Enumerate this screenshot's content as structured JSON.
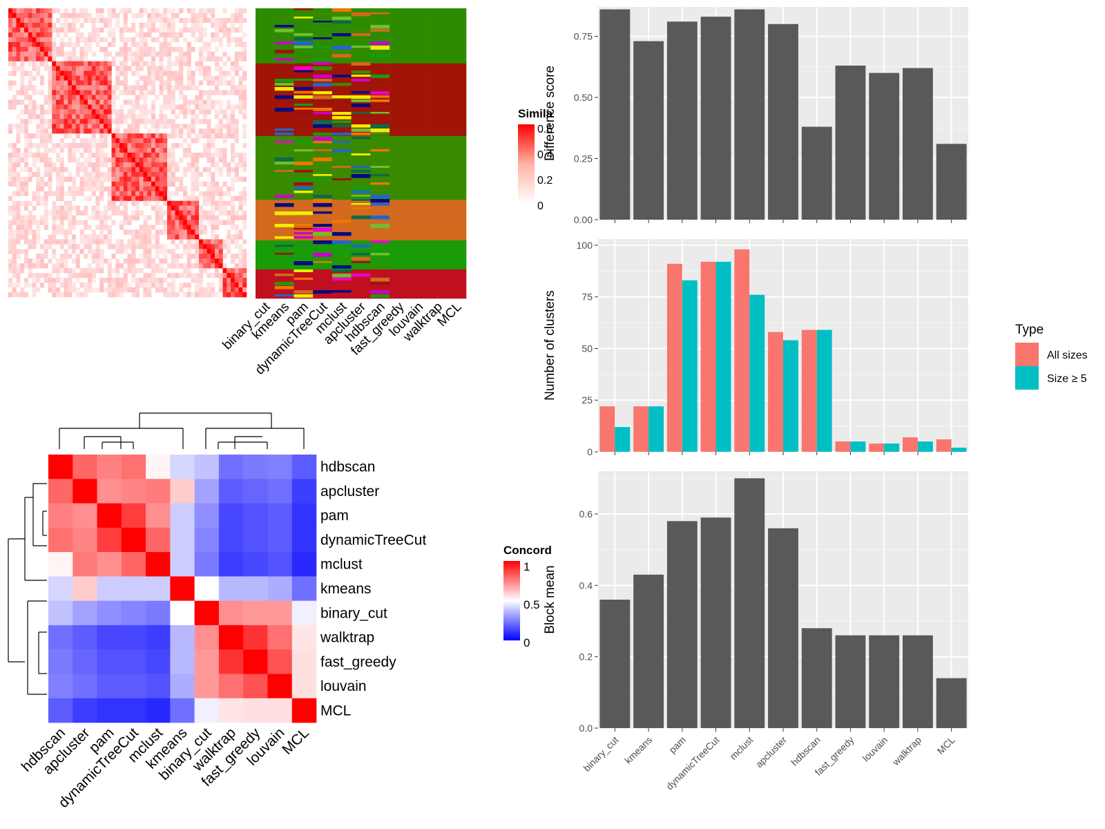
{
  "colors": {
    "panel_bg": "#ebebeb",
    "grid": "#ffffff",
    "bar_dark": "#595959",
    "all_sizes": "#f8766d",
    "size_ge5": "#00bfc4",
    "sim_high": "#ff0000",
    "conc_high": "#ff0000",
    "conc_mid": "#ffffff",
    "conc_low": "#0000ff"
  },
  "similarity_heatmap": {
    "legend_title": "Simila",
    "legend_ticks": [
      "0.6",
      "0.4",
      "0.2",
      "0"
    ]
  },
  "membership_heatmap": {
    "methods": [
      "binary_cut",
      "kmeans",
      "pam",
      "dynamicTreeCut",
      "mclust",
      "apcluster",
      "hdbscan",
      "fast_greedy",
      "louvain",
      "walktrap",
      "MCL"
    ]
  },
  "concordance_heatmap": {
    "legend_title": "Concord",
    "legend_ticks": [
      "1",
      "0.5",
      "0"
    ],
    "methods": [
      "hdbscan",
      "apcluster",
      "pam",
      "dynamicTreeCut",
      "mclust",
      "kmeans",
      "binary_cut",
      "walktrap",
      "fast_greedy",
      "louvain",
      "MCL"
    ],
    "matrix": [
      [
        1.0,
        0.8,
        0.75,
        0.78,
        0.52,
        0.42,
        0.38,
        0.22,
        0.24,
        0.25,
        0.18
      ],
      [
        0.8,
        1.0,
        0.72,
        0.74,
        0.76,
        0.6,
        0.32,
        0.18,
        0.2,
        0.22,
        0.12
      ],
      [
        0.75,
        0.72,
        1.0,
        0.88,
        0.72,
        0.4,
        0.28,
        0.14,
        0.16,
        0.18,
        0.1
      ],
      [
        0.78,
        0.74,
        0.88,
        1.0,
        0.8,
        0.4,
        0.26,
        0.14,
        0.16,
        0.18,
        0.1
      ],
      [
        0.52,
        0.76,
        0.72,
        0.8,
        1.0,
        0.4,
        0.24,
        0.12,
        0.14,
        0.16,
        0.08
      ],
      [
        0.42,
        0.6,
        0.4,
        0.4,
        0.4,
        1.0,
        0.5,
        0.36,
        0.36,
        0.34,
        0.22
      ],
      [
        0.38,
        0.32,
        0.28,
        0.26,
        0.24,
        0.5,
        1.0,
        0.72,
        0.7,
        0.7,
        0.47
      ],
      [
        0.22,
        0.18,
        0.14,
        0.14,
        0.12,
        0.36,
        0.72,
        1.0,
        0.9,
        0.78,
        0.55
      ],
      [
        0.24,
        0.2,
        0.16,
        0.16,
        0.14,
        0.36,
        0.7,
        0.9,
        1.0,
        0.84,
        0.56
      ],
      [
        0.25,
        0.22,
        0.18,
        0.18,
        0.16,
        0.34,
        0.7,
        0.78,
        0.84,
        1.0,
        0.56
      ],
      [
        0.18,
        0.12,
        0.1,
        0.1,
        0.08,
        0.22,
        0.47,
        0.55,
        0.56,
        0.56,
        1.0
      ]
    ]
  },
  "chart_data": [
    {
      "type": "bar",
      "categories": [
        "binary_cut",
        "kmeans",
        "pam",
        "dynamicTreeCut",
        "mclust",
        "apcluster",
        "hdbscan",
        "fast_greedy",
        "louvain",
        "walktrap",
        "MCL"
      ],
      "values": [
        0.86,
        0.73,
        0.81,
        0.83,
        0.86,
        0.8,
        0.38,
        0.63,
        0.6,
        0.62,
        0.31
      ],
      "ylabel": "Difference score",
      "ylim": [
        0,
        0.87
      ],
      "yticks": [
        "0.00",
        "0.25",
        "0.50",
        "0.75"
      ],
      "grid": true
    },
    {
      "type": "bar",
      "categories": [
        "binary_cut",
        "kmeans",
        "pam",
        "dynamicTreeCut",
        "mclust",
        "apcluster",
        "hdbscan",
        "fast_greedy",
        "louvain",
        "walktrap",
        "MCL"
      ],
      "series": [
        {
          "name": "All sizes",
          "values": [
            22,
            22,
            91,
            92,
            98,
            58,
            59,
            5,
            4,
            7,
            6
          ]
        },
        {
          "name": "Size ≥ 5",
          "values": [
            12,
            22,
            83,
            92,
            76,
            54,
            59,
            5,
            4,
            5,
            2
          ]
        }
      ],
      "ylabel": "Number of clusters",
      "ylim": [
        0,
        103
      ],
      "yticks": [
        "0",
        "25",
        "50",
        "75",
        "100"
      ],
      "legend_title": "Type",
      "legend_position": "right",
      "grid": true
    },
    {
      "type": "bar",
      "categories": [
        "binary_cut",
        "kmeans",
        "pam",
        "dynamicTreeCut",
        "mclust",
        "apcluster",
        "hdbscan",
        "fast_greedy",
        "louvain",
        "walktrap",
        "MCL"
      ],
      "values": [
        0.36,
        0.43,
        0.58,
        0.59,
        0.7,
        0.56,
        0.28,
        0.26,
        0.26,
        0.26,
        0.14
      ],
      "ylabel": "Block mean",
      "ylim": [
        0,
        0.72
      ],
      "yticks": [
        "0.0",
        "0.2",
        "0.4",
        "0.6"
      ],
      "grid": true
    }
  ]
}
